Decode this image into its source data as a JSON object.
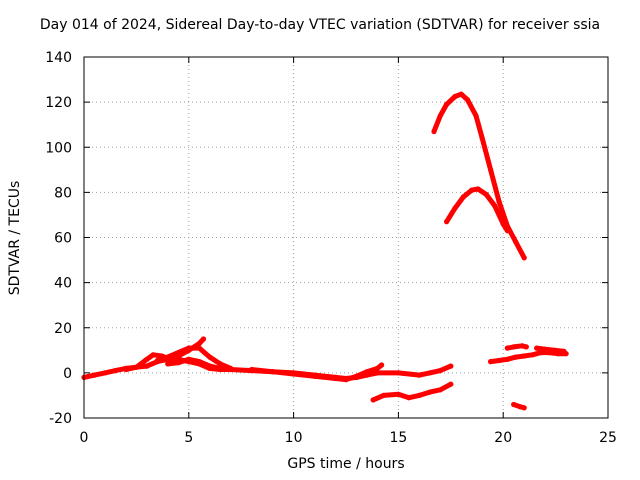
{
  "chart_data": {
    "type": "scatter",
    "title": "Day 014 of 2024, Sidereal Day-to-day VTEC variation (SDTVAR) for receiver ssia",
    "xlabel": "GPS time / hours",
    "ylabel": "SDTVAR / TECUs",
    "xlim": [
      0,
      25
    ],
    "ylim": [
      -20,
      140
    ],
    "xticks": [
      0,
      5,
      10,
      15,
      20,
      25
    ],
    "yticks": [
      -20,
      0,
      20,
      40,
      60,
      80,
      100,
      120,
      140
    ],
    "grid": true,
    "color": "#ff0000",
    "series": [
      {
        "name": "trace-main-low",
        "points": [
          [
            0,
            -2
          ],
          [
            0.5,
            -1
          ],
          [
            1,
            0
          ],
          [
            1.5,
            1
          ],
          [
            2,
            2
          ],
          [
            2.5,
            2.5
          ],
          [
            3,
            3
          ],
          [
            3.5,
            5
          ],
          [
            4,
            6
          ],
          [
            4.5,
            6
          ],
          [
            5,
            5
          ],
          [
            5.5,
            4
          ],
          [
            6,
            2
          ],
          [
            6.5,
            1.5
          ],
          [
            7,
            1.5
          ],
          [
            8,
            1
          ],
          [
            9,
            0.5
          ],
          [
            10,
            0
          ],
          [
            11,
            -1
          ],
          [
            12,
            -2
          ],
          [
            12.5,
            -2.5
          ],
          [
            13,
            -2
          ],
          [
            13.5,
            -1
          ],
          [
            14,
            0
          ],
          [
            15,
            0
          ],
          [
            16,
            -1
          ],
          [
            16.5,
            0
          ],
          [
            17,
            1
          ],
          [
            17.5,
            3
          ]
        ]
      },
      {
        "name": "trace-hump-1",
        "points": [
          [
            2,
            1.5
          ],
          [
            2.5,
            2.5
          ],
          [
            3,
            6
          ],
          [
            3.3,
            8
          ],
          [
            3.7,
            7.5
          ],
          [
            4,
            6.5
          ],
          [
            4.5,
            7.5
          ],
          [
            5,
            10
          ],
          [
            5.5,
            13
          ],
          [
            5.7,
            15
          ]
        ]
      },
      {
        "name": "trace-hump-2",
        "points": [
          [
            3.5,
            5.5
          ],
          [
            4,
            7
          ],
          [
            4.5,
            9
          ],
          [
            5,
            11
          ],
          [
            5.5,
            11
          ],
          [
            6,
            7
          ],
          [
            6.5,
            4
          ],
          [
            7,
            2
          ]
        ]
      },
      {
        "name": "trace-hump-3",
        "points": [
          [
            4,
            4
          ],
          [
            4.5,
            4.5
          ],
          [
            5,
            6
          ],
          [
            5.5,
            5
          ],
          [
            6,
            3
          ],
          [
            6.5,
            2
          ],
          [
            7,
            1.5
          ]
        ]
      },
      {
        "name": "trace-wave-lower",
        "points": [
          [
            8,
            1.5
          ],
          [
            9,
            0.5
          ],
          [
            10,
            -0.5
          ],
          [
            11,
            -1.5
          ],
          [
            12,
            -2.5
          ],
          [
            12.5,
            -3
          ],
          [
            13,
            -1.5
          ],
          [
            13.5,
            0.5
          ],
          [
            14,
            2
          ],
          [
            14.2,
            3.5
          ]
        ]
      },
      {
        "name": "trace-negative",
        "points": [
          [
            13.8,
            -12
          ],
          [
            14.3,
            -10
          ],
          [
            15,
            -9.5
          ],
          [
            15.5,
            -11
          ],
          [
            16,
            -10
          ],
          [
            16.5,
            -8.5
          ],
          [
            17,
            -7.5
          ],
          [
            17.5,
            -5
          ]
        ]
      },
      {
        "name": "trace-arc-high",
        "points": [
          [
            16.7,
            107
          ],
          [
            17,
            114
          ],
          [
            17.3,
            119
          ],
          [
            17.7,
            122.5
          ],
          [
            18,
            123.5
          ],
          [
            18.3,
            121
          ],
          [
            18.7,
            114
          ],
          [
            19,
            104
          ],
          [
            19.4,
            90
          ],
          [
            19.8,
            76
          ],
          [
            20.2,
            65
          ],
          [
            20.6,
            58
          ],
          [
            21,
            51
          ]
        ]
      },
      {
        "name": "trace-arc-mid",
        "points": [
          [
            17.3,
            67
          ],
          [
            17.7,
            73
          ],
          [
            18.1,
            78
          ],
          [
            18.5,
            81
          ],
          [
            18.8,
            81.5
          ],
          [
            19.2,
            79
          ],
          [
            19.6,
            74
          ],
          [
            20,
            66
          ],
          [
            20.2,
            63
          ]
        ]
      },
      {
        "name": "trace-late-1",
        "points": [
          [
            19.4,
            5
          ],
          [
            19.8,
            5.5
          ],
          [
            20.2,
            6
          ],
          [
            20.6,
            7
          ],
          [
            21,
            7.5
          ],
          [
            21.4,
            8
          ],
          [
            21.8,
            9
          ],
          [
            22.2,
            9
          ],
          [
            22.6,
            8.5
          ],
          [
            23,
            8.5
          ]
        ]
      },
      {
        "name": "trace-late-2",
        "points": [
          [
            20.2,
            11
          ],
          [
            20.5,
            11.5
          ],
          [
            20.9,
            12
          ],
          [
            21.1,
            11.5
          ]
        ]
      },
      {
        "name": "trace-late-3",
        "points": [
          [
            21.6,
            11
          ],
          [
            22,
            10.5
          ],
          [
            22.5,
            10
          ],
          [
            22.9,
            9.5
          ]
        ]
      },
      {
        "name": "trace-late-neg",
        "points": [
          [
            20.5,
            -14
          ],
          [
            20.8,
            -15
          ],
          [
            21,
            -15.5
          ]
        ]
      }
    ]
  }
}
